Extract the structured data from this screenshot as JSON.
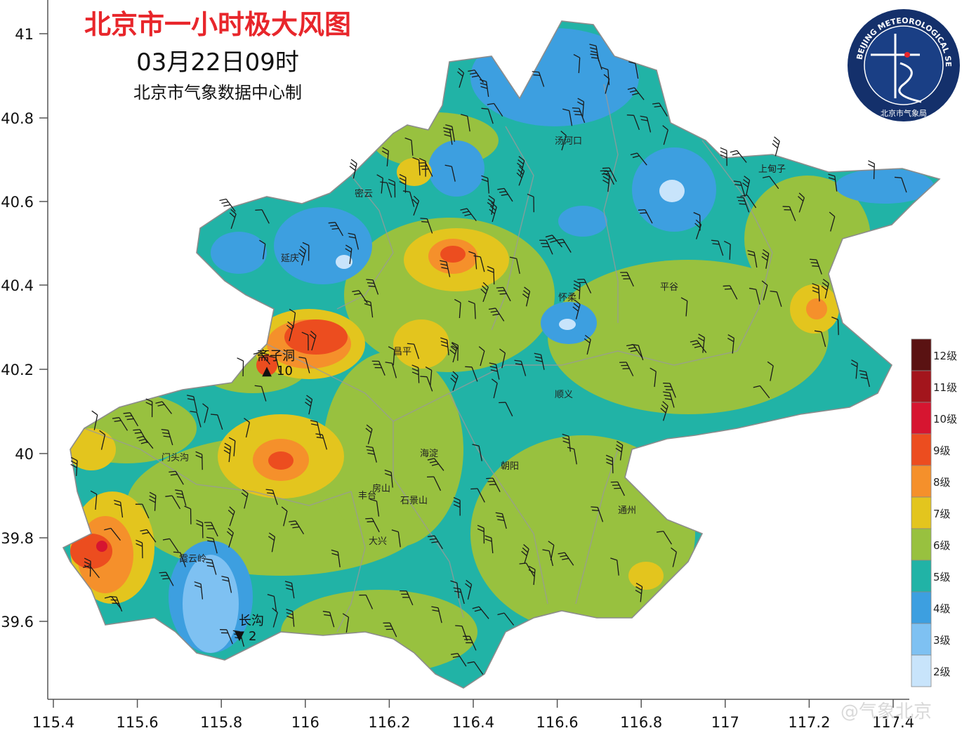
{
  "header": {
    "title": "北京市一小时极大风图",
    "datetime": "03月22日09时",
    "credit": "北京市气象数据中心制"
  },
  "logo": {
    "text": "BEIJING METEOROLOGICAL SERVICE",
    "cn": "北京市气象局"
  },
  "axes": {
    "x_ticks": [
      "115.4",
      "115.6",
      "115.8",
      "116",
      "116.2",
      "116.4",
      "116.6",
      "116.8",
      "117",
      "117.2",
      "117.4"
    ],
    "y_ticks": [
      "41",
      "40.8",
      "40.6",
      "40.4",
      "40.2",
      "40",
      "39.8",
      "39.6"
    ]
  },
  "stations": [
    {
      "name": "斋子洞",
      "value": "10",
      "marker": "▲"
    },
    {
      "name": "长沟",
      "value": "2",
      "marker": "▼"
    }
  ],
  "places": [
    "汤河口",
    "上甸子",
    "延庆",
    "怀柔",
    "顺义",
    "昌平",
    "海淀",
    "朝阳",
    "丰台",
    "大兴",
    "房山",
    "通州",
    "平谷",
    "密云",
    "门头沟",
    "石景山",
    "霞云岭"
  ],
  "legend": {
    "levels": [
      {
        "label": "12级",
        "color": "#5a1212"
      },
      {
        "label": "11级",
        "color": "#a3151c"
      },
      {
        "label": "10级",
        "color": "#d61530"
      },
      {
        "label": "9级",
        "color": "#ec4d1f"
      },
      {
        "label": "8级",
        "color": "#f5902b"
      },
      {
        "label": "7级",
        "color": "#e3c51e"
      },
      {
        "label": "6级",
        "color": "#98c13f"
      },
      {
        "label": "5级",
        "color": "#21b3a6"
      },
      {
        "label": "4级",
        "color": "#3d9fe0"
      },
      {
        "label": "3级",
        "color": "#7ec1f2"
      },
      {
        "label": "2级",
        "color": "#c8e4fb"
      }
    ]
  },
  "watermark": "@气象北京"
}
